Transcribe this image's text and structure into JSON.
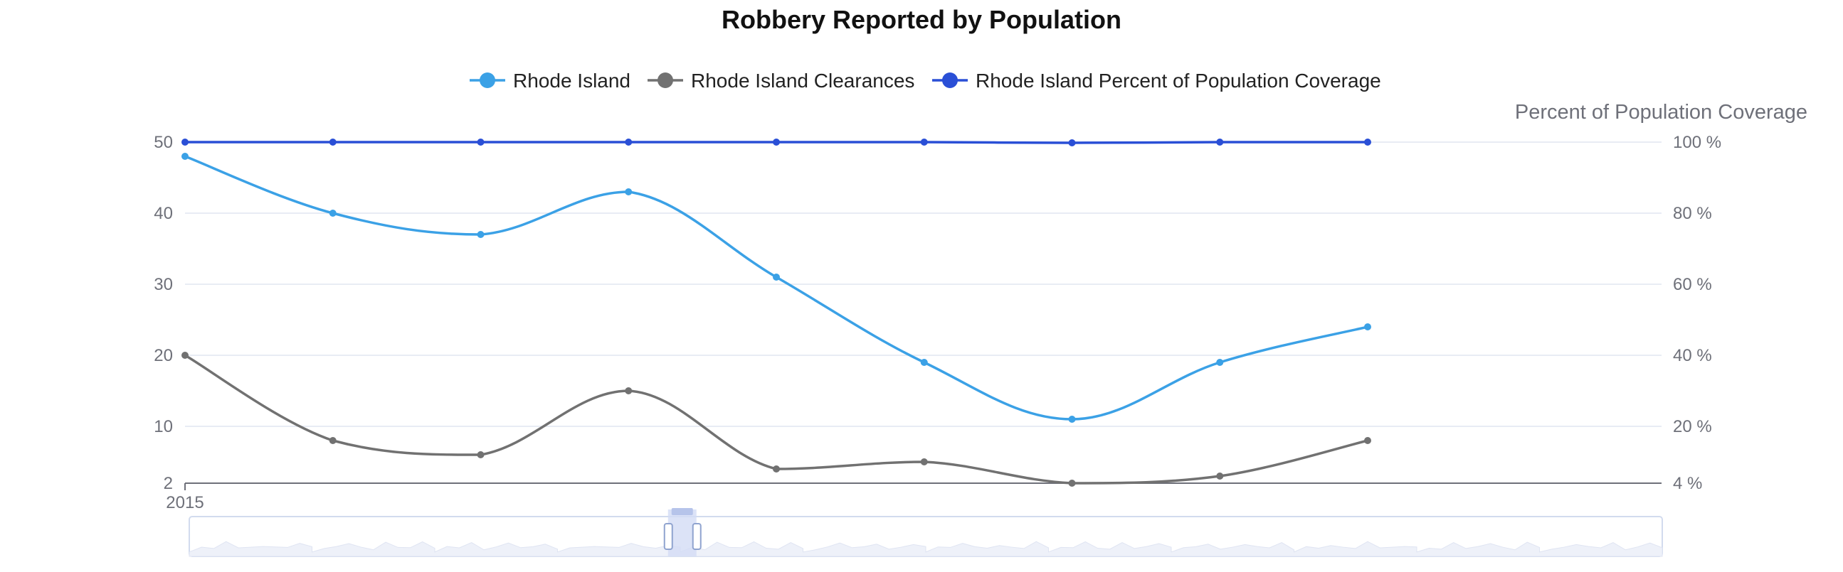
{
  "chart_data": {
    "type": "line",
    "title": "Robbery Reported by Population",
    "x": [
      "2015",
      "",
      "",
      "",
      "",
      "",
      "",
      "",
      ""
    ],
    "x_tick_label": "2015",
    "series": [
      {
        "name": "Rhode Island",
        "axis": "left",
        "color": "#3ba1e6",
        "values": [
          48,
          40,
          37,
          43,
          31,
          19,
          11,
          19,
          24
        ]
      },
      {
        "name": "Rhode Island Clearances",
        "axis": "left",
        "color": "#717171",
        "values": [
          20,
          8,
          6,
          15,
          4,
          5,
          2,
          3,
          8
        ]
      },
      {
        "name": "Rhode Island Percent of Population Coverage",
        "axis": "right",
        "color": "#2a4fd6",
        "values": [
          100,
          100,
          100,
          100,
          100,
          100,
          99.8,
          100,
          100
        ]
      }
    ],
    "y_left": {
      "ticks": [
        2,
        10,
        20,
        30,
        40,
        50
      ],
      "ylim": [
        2,
        50
      ]
    },
    "y_right": {
      "name": "Percent of Population Coverage",
      "ticks": [
        "4 %",
        "20 %",
        "40 %",
        "60 %",
        "80 %",
        "100 %"
      ],
      "tick_values": [
        4,
        20,
        40,
        60,
        80,
        100
      ],
      "ylim": [
        4,
        100
      ]
    },
    "grid": true,
    "legend_position": "top-center",
    "data_zoom": {
      "visible": true,
      "handle_position": 0.325
    }
  }
}
